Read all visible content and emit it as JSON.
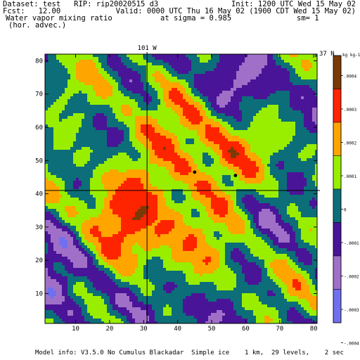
{
  "header": {
    "dataset": "Dataset: test   RIP: rip20020515 d3",
    "init": "Init: 1200 UTC Wed 15 May 02",
    "fcst": "Fcst:   12.00",
    "valid": "Valid: 0000 UTC Thu 16 May 02 (1900 CDT Wed 15 May 02)",
    "field": "Water vapor mixing ratio",
    "sigma": "at sigma = 0.985",
    "sm": "sm= 1",
    "advec": "(hor. advec.)"
  },
  "footer": "Model info: V3.5.0 No Cumulus Blackadar  Simple ice    1 km,  29 levels,    2 sec",
  "colors": {
    "palette": [
      "#7070ee",
      "#a070c8",
      "#4a1498",
      "#0c6e78",
      "#99ee00",
      "#ffa500",
      "#ff2400",
      "#7a3a08"
    ]
  },
  "chart_data": {
    "type": "heatmap",
    "title": "Water vapor mixing ratio",
    "x_ticks": [
      10,
      20,
      30,
      40,
      50,
      60,
      70,
      80
    ],
    "y_ticks": [
      10,
      20,
      30,
      40,
      50,
      60,
      70,
      80
    ],
    "xlim": [
      1,
      81
    ],
    "ylim": [
      1,
      82
    ],
    "cross_lines": {
      "meridian_x": 31,
      "meridian_label": "101 W",
      "parallel_y": 41,
      "parallel_label": "37 N"
    },
    "points": [
      [
        45,
        46.5
      ],
      [
        57,
        45.5
      ]
    ],
    "colorbar": {
      "unit_label": "kg kg-1",
      "levels": [
        {
          "label": ".0004",
          "color": "#7a3a08"
        },
        {
          "label": ".0003",
          "color": "#ff2400"
        },
        {
          "label": ".0002",
          "color": "#ffa500"
        },
        {
          "label": ".0001",
          "color": "#99ee00"
        },
        {
          "label": "0",
          "color": "#0c6e78"
        },
        {
          "label": "-.0001",
          "color": "#4a1498"
        },
        {
          "label": "-.0002",
          "color": "#a070c8"
        },
        {
          "label": "-.0003",
          "color": "#7070ee"
        },
        {
          "label": "-.0004",
          "color": ""
        }
      ]
    }
  }
}
